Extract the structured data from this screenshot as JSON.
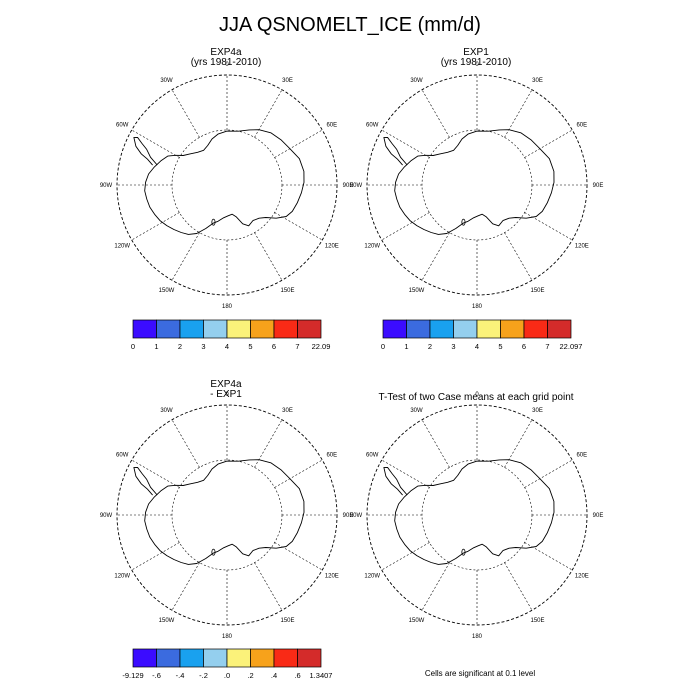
{
  "figure": {
    "title": "JJA QSNOMELT_ICE (mm/d)"
  },
  "panels": [
    {
      "id": "exp4a",
      "title_line1": "EXP4a",
      "title_line2": "(yrs 1981-2010)",
      "lon_labels": [
        "0",
        "30E",
        "60E",
        "90E",
        "120E",
        "150E",
        "180",
        "150W",
        "120W",
        "90W",
        "60W",
        "30W"
      ],
      "colorbar": {
        "colors": [
          "#3b0cff",
          "#3b6bdf",
          "#19a1ef",
          "#94cfee",
          "#fbf27a",
          "#f7a21b",
          "#f92a16",
          "#d42b2a"
        ],
        "labels": [
          "0",
          "1",
          "2",
          "3",
          "4",
          "5",
          "6",
          "7",
          "22.09"
        ]
      }
    },
    {
      "id": "exp1",
      "title_line1": "EXP1",
      "title_line2": "(yrs 1981-2010)",
      "lon_labels": [
        "0",
        "30E",
        "60E",
        "90E",
        "120E",
        "150E",
        "180",
        "150W",
        "120W",
        "90W",
        "60W",
        "30W"
      ],
      "colorbar": {
        "colors": [
          "#3b0cff",
          "#3b6bdf",
          "#19a1ef",
          "#94cfee",
          "#fbf27a",
          "#f7a21b",
          "#f92a16",
          "#d42b2a"
        ],
        "labels": [
          "0",
          "1",
          "2",
          "3",
          "4",
          "5",
          "6",
          "7",
          "22.097"
        ]
      }
    },
    {
      "id": "diff",
      "title_line1": "EXP4a",
      "title_line2": "- EXP1",
      "lon_labels": [
        "0",
        "30E",
        "60E",
        "90E",
        "120E",
        "150E",
        "180",
        "150W",
        "120W",
        "90W",
        "60W",
        "30W"
      ],
      "colorbar": {
        "colors": [
          "#3b0cff",
          "#3b6bdf",
          "#19a1ef",
          "#94cfee",
          "#fbf27a",
          "#f7a21b",
          "#f92a16",
          "#d42b2a"
        ],
        "labels": [
          "-9.129",
          "-.6",
          "-.4",
          "-.2",
          ".0",
          ".2",
          ".4",
          ".6",
          "1.3407"
        ]
      }
    },
    {
      "id": "ttest",
      "title_line1": "T-Test of two Case means at each grid point",
      "lon_labels": [
        "0",
        "30E",
        "60E",
        "90E",
        "120E",
        "150E",
        "180",
        "150W",
        "120W",
        "90W",
        "60W",
        "30W"
      ],
      "note": "Cells are significant at 0.1 level"
    }
  ]
}
